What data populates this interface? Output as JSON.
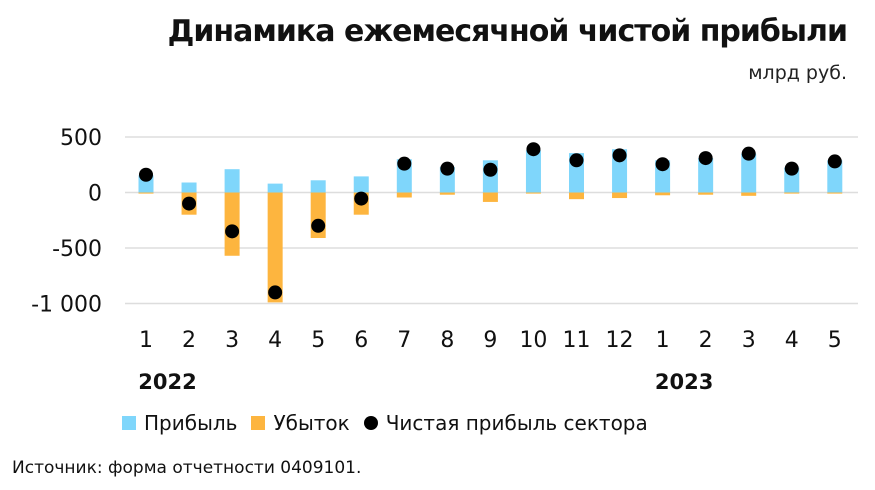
{
  "chart_data": {
    "type": "bar",
    "title": "Динамика ежемесячной чистой прибыли",
    "subtitle": "млрд руб.",
    "categories": [
      "1",
      "2",
      "3",
      "4",
      "5",
      "6",
      "7",
      "8",
      "9",
      "10",
      "11",
      "12",
      "1",
      "2",
      "3",
      "4",
      "5"
    ],
    "year_labels": [
      {
        "label": "2022",
        "index": 0.5
      },
      {
        "label": "2023",
        "index": 12.5
      }
    ],
    "ylim": [
      -1000,
      500
    ],
    "yticks": [
      500,
      0,
      -500,
      -1000
    ],
    "ytick_labels": [
      "500",
      "0",
      "-500",
      "-1 000"
    ],
    "grid": true,
    "legend_position": "bottom",
    "series": [
      {
        "name": "Прибыль",
        "kind": "bar",
        "color": "#7fd6fb",
        "values": [
          155,
          90,
          210,
          80,
          110,
          145,
          300,
          230,
          290,
          380,
          355,
          390,
          290,
          310,
          350,
          225,
          290
        ]
      },
      {
        "name": "Убыток",
        "kind": "bar",
        "color": "#fdb53f",
        "values": [
          -10,
          -200,
          -570,
          -990,
          -410,
          -200,
          -45,
          -20,
          -85,
          -10,
          -60,
          -50,
          -25,
          -20,
          -30,
          -10,
          -10
        ]
      },
      {
        "name": "Чистая прибыль сектора",
        "kind": "dot",
        "color": "#000000",
        "values": [
          160,
          -100,
          -350,
          -900,
          -300,
          -55,
          260,
          215,
          205,
          390,
          290,
          335,
          255,
          310,
          350,
          215,
          280
        ]
      }
    ]
  },
  "source": "Источник: форма отчетности 0409101."
}
